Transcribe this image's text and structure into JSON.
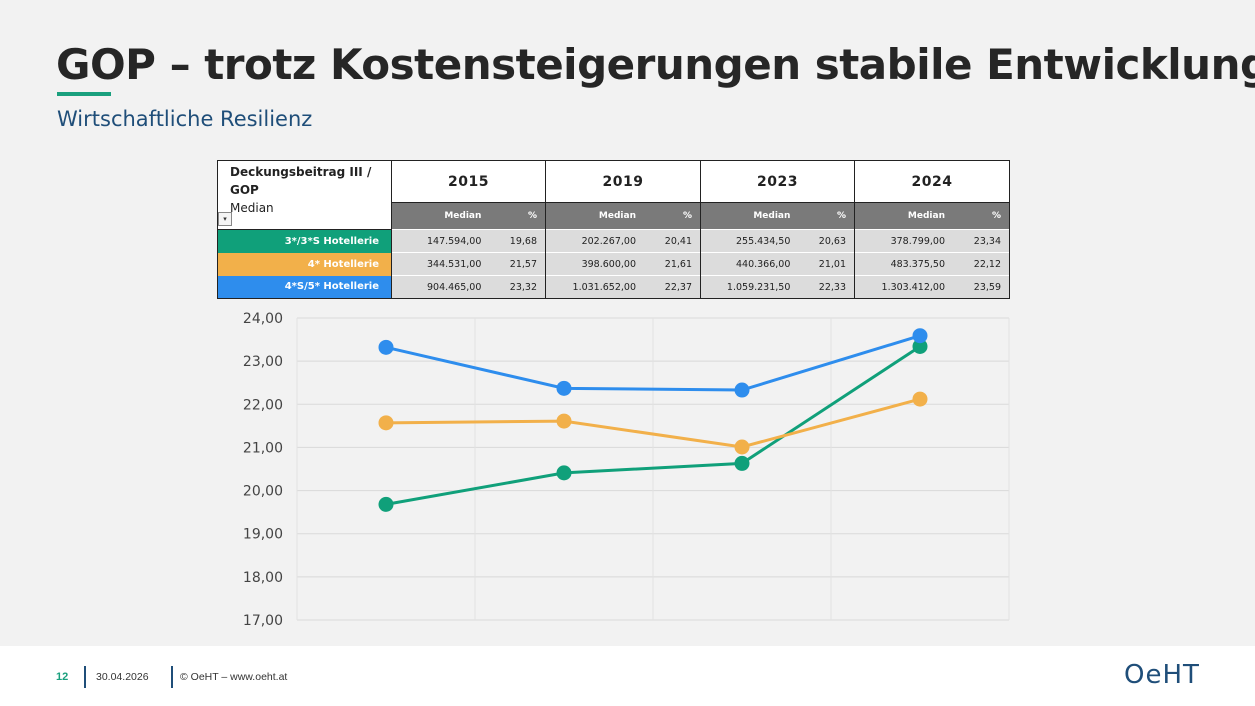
{
  "title": "GOP – trotz Kostensteigerungen stabile Entwicklung",
  "subtitle": "Wirtschaftliche Resilienz",
  "table": {
    "header_label_line1": "Deckungsbeitrag III /",
    "header_label_line2": "GOP",
    "header_label_line3": "Median",
    "years": [
      "2015",
      "2019",
      "2023",
      "2024"
    ],
    "sub_median": "Median",
    "sub_pct": "%",
    "rows": [
      {
        "label": "3*/3*S Hotellerie",
        "color": "#10a07a",
        "values": [
          [
            "147.594,00",
            "19,68"
          ],
          [
            "202.267,00",
            "20,41"
          ],
          [
            "255.434,50",
            "20,63"
          ],
          [
            "378.799,00",
            "23,34"
          ]
        ]
      },
      {
        "label": "4* Hotellerie",
        "color": "#f2b04a",
        "values": [
          [
            "344.531,00",
            "21,57"
          ],
          [
            "398.600,00",
            "21,61"
          ],
          [
            "440.366,00",
            "21,01"
          ],
          [
            "483.375,50",
            "22,12"
          ]
        ]
      },
      {
        "label": "4*S/5* Hotellerie",
        "color": "#2e8ded",
        "values": [
          [
            "904.465,00",
            "23,32"
          ],
          [
            "1.031.652,00",
            "22,37"
          ],
          [
            "1.059.231,50",
            "22,33"
          ],
          [
            "1.303.412,00",
            "23,59"
          ]
        ]
      }
    ]
  },
  "chart_data": {
    "type": "line",
    "x": [
      "2015",
      "2019",
      "2023",
      "2024"
    ],
    "ylim": [
      17,
      24
    ],
    "yticks": [
      "17,00",
      "18,00",
      "19,00",
      "20,00",
      "21,00",
      "22,00",
      "23,00",
      "24,00"
    ],
    "grid": true,
    "series": [
      {
        "name": "3*/3*S Hotellerie",
        "color": "#10a07a",
        "values": [
          19.68,
          20.41,
          20.63,
          23.34
        ]
      },
      {
        "name": "4* Hotellerie",
        "color": "#f2b04a",
        "values": [
          21.57,
          21.61,
          21.01,
          22.12
        ]
      },
      {
        "name": "4*S/5* Hotellerie",
        "color": "#2e8ded",
        "values": [
          23.32,
          22.37,
          22.33,
          23.59
        ]
      }
    ]
  },
  "footer": {
    "page": "12",
    "date": "30.04.2026",
    "copyright": "© OeHT – www.oeht.at",
    "logo": "OeHT"
  }
}
